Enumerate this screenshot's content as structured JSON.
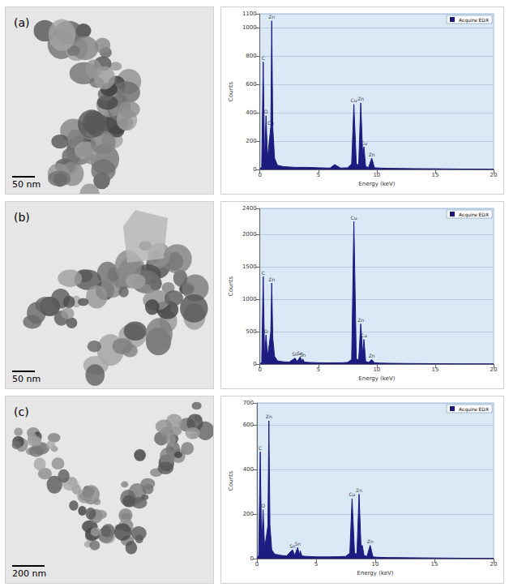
{
  "panels": [
    {
      "label": "(a)",
      "scale_bar": "50 nm"
    },
    {
      "label": "(b)",
      "scale_bar": "50 nm"
    },
    {
      "label": "(c)",
      "scale_bar": "200 nm"
    }
  ],
  "chart_data": [
    {
      "type": "line",
      "x_label": "Energy (keV)",
      "y_label": "Counts",
      "grid": true,
      "legend": "upper right",
      "xlim": [
        0,
        20
      ],
      "xticks": [
        0,
        5,
        10,
        15,
        20
      ],
      "ylim": [
        0,
        1100
      ],
      "yticks": [
        0,
        200,
        400,
        600,
        800,
        1000
      ],
      "x": [
        0,
        0.15,
        0.28,
        0.4,
        0.52,
        0.65,
        0.8,
        0.93,
        1.01,
        1.1,
        1.25,
        1.5,
        2,
        3,
        4,
        5,
        6,
        6.4,
        6.9,
        7.5,
        7.85,
        8.04,
        8.25,
        8.45,
        8.63,
        8.8,
        8.9,
        9.05,
        9.3,
        9.57,
        9.8,
        10.2,
        11,
        13,
        15,
        17,
        20
      ],
      "series": [
        {
          "name": "Acquire EDX",
          "color": "#1c1c80",
          "values": [
            0,
            20,
            760,
            60,
            380,
            80,
            200,
            300,
            1050,
            300,
            80,
            30,
            20,
            15,
            15,
            12,
            10,
            35,
            10,
            12,
            40,
            460,
            40,
            30,
            470,
            90,
            160,
            20,
            15,
            80,
            12,
            10,
            8,
            6,
            5,
            3,
            2
          ]
        }
      ],
      "annotations": [
        {
          "x": 0.28,
          "y": 760,
          "text": "C"
        },
        {
          "x": 0.52,
          "y": 380,
          "text": "O"
        },
        {
          "x": 0.93,
          "y": 300,
          "text": "Cu"
        },
        {
          "x": 1.01,
          "y": 1050,
          "text": "Zn"
        },
        {
          "x": 8.04,
          "y": 460,
          "text": "Cu"
        },
        {
          "x": 8.63,
          "y": 470,
          "text": "Zn"
        },
        {
          "x": 8.9,
          "y": 160,
          "text": "Cu"
        },
        {
          "x": 9.57,
          "y": 80,
          "text": "Zn"
        }
      ]
    },
    {
      "type": "line",
      "x_label": "Energy (keV)",
      "y_label": "Counts",
      "grid": true,
      "legend": "upper right",
      "xlim": [
        0,
        20
      ],
      "xticks": [
        0,
        5,
        10,
        15,
        20
      ],
      "ylim": [
        0,
        2400
      ],
      "yticks": [
        0,
        500,
        1000,
        1500,
        2000
      ],
      "x": [
        0,
        0.15,
        0.28,
        0.4,
        0.52,
        0.65,
        0.8,
        0.93,
        1.01,
        1.1,
        1.25,
        1.5,
        2,
        2.5,
        3.0,
        3.2,
        3.44,
        3.6,
        3.66,
        3.8,
        4.2,
        5,
        6,
        7,
        7.5,
        7.85,
        8.04,
        8.25,
        8.45,
        8.63,
        8.8,
        8.9,
        9.05,
        9.3,
        9.57,
        9.8,
        10.2,
        11,
        13,
        15,
        17,
        20
      ],
      "series": [
        {
          "name": "Acquire EDX",
          "color": "#1c1c80",
          "values": [
            0,
            30,
            1350,
            100,
            450,
            120,
            300,
            500,
            1250,
            400,
            120,
            50,
            35,
            30,
            90,
            40,
            110,
            40,
            80,
            30,
            25,
            20,
            18,
            20,
            25,
            70,
            2200,
            80,
            60,
            620,
            150,
            380,
            40,
            25,
            70,
            20,
            15,
            12,
            8,
            6,
            4,
            3
          ]
        }
      ],
      "annotations": [
        {
          "x": 0.28,
          "y": 1350,
          "text": "C"
        },
        {
          "x": 0.52,
          "y": 450,
          "text": "O"
        },
        {
          "x": 1.01,
          "y": 1250,
          "text": "Zn"
        },
        {
          "x": 3.0,
          "y": 90,
          "text": "Sn"
        },
        {
          "x": 3.44,
          "y": 110,
          "text": "Sn"
        },
        {
          "x": 3.66,
          "y": 80,
          "text": "Sn"
        },
        {
          "x": 8.04,
          "y": 2200,
          "text": "Cu"
        },
        {
          "x": 8.63,
          "y": 620,
          "text": "Zn"
        },
        {
          "x": 8.9,
          "y": 380,
          "text": "Cu"
        },
        {
          "x": 9.57,
          "y": 70,
          "text": "Zn"
        }
      ]
    },
    {
      "type": "line",
      "x_label": "Energy (keV)",
      "y_label": "Counts",
      "grid": true,
      "legend": "upper right",
      "xlim": [
        0,
        20
      ],
      "xticks": [
        0,
        5,
        10,
        15,
        20
      ],
      "ylim": [
        0,
        700
      ],
      "yticks": [
        0,
        200,
        400,
        600
      ],
      "x": [
        0,
        0.15,
        0.28,
        0.4,
        0.52,
        0.65,
        0.8,
        0.93,
        1.01,
        1.1,
        1.25,
        1.5,
        2,
        2.5,
        3.0,
        3.2,
        3.44,
        3.6,
        3.66,
        3.8,
        4.2,
        5,
        6,
        7,
        7.5,
        7.85,
        8.04,
        8.25,
        8.45,
        8.63,
        8.8,
        8.9,
        9.05,
        9.3,
        9.57,
        9.8,
        10.2,
        11,
        13,
        15,
        17,
        20
      ],
      "series": [
        {
          "name": "Acquire EDX",
          "color": "#1c1c80",
          "values": [
            0,
            15,
            480,
            40,
            220,
            50,
            100,
            150,
            620,
            150,
            40,
            20,
            15,
            12,
            40,
            15,
            50,
            15,
            35,
            12,
            10,
            8,
            8,
            9,
            10,
            25,
            270,
            25,
            20,
            290,
            50,
            60,
            15,
            10,
            60,
            8,
            6,
            5,
            4,
            3,
            2,
            1
          ]
        }
      ],
      "annotations": [
        {
          "x": 0.28,
          "y": 480,
          "text": "C"
        },
        {
          "x": 0.52,
          "y": 220,
          "text": "O"
        },
        {
          "x": 1.01,
          "y": 620,
          "text": "Zn"
        },
        {
          "x": 3.0,
          "y": 40,
          "text": "Sn"
        },
        {
          "x": 3.44,
          "y": 50,
          "text": "Sn"
        },
        {
          "x": 8.04,
          "y": 270,
          "text": "Cu"
        },
        {
          "x": 8.63,
          "y": 290,
          "text": "Zn"
        },
        {
          "x": 9.57,
          "y": 60,
          "text": "Zn"
        }
      ]
    }
  ]
}
